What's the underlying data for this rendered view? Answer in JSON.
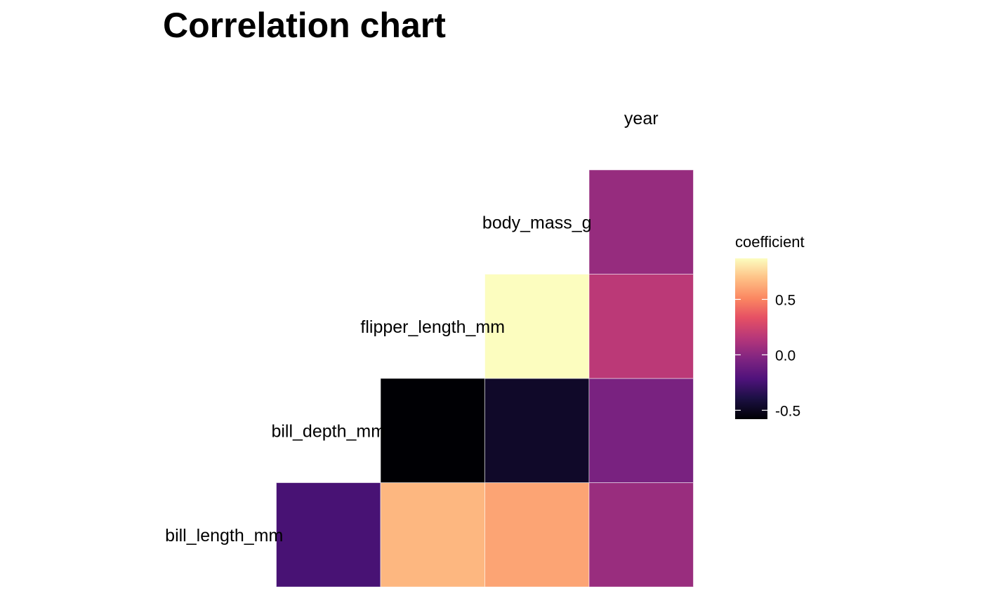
{
  "chart_data": {
    "type": "heatmap",
    "title": "Correlation chart",
    "variables": [
      "bill_length_mm",
      "bill_depth_mm",
      "flipper_length_mm",
      "body_mass_g",
      "year"
    ],
    "cells": [
      {
        "row": "bill_length_mm",
        "col": "bill_depth_mm",
        "value": -0.24
      },
      {
        "row": "bill_length_mm",
        "col": "flipper_length_mm",
        "value": 0.66
      },
      {
        "row": "bill_length_mm",
        "col": "body_mass_g",
        "value": 0.6
      },
      {
        "row": "bill_length_mm",
        "col": "year",
        "value": 0.05
      },
      {
        "row": "bill_depth_mm",
        "col": "flipper_length_mm",
        "value": -0.58
      },
      {
        "row": "bill_depth_mm",
        "col": "body_mass_g",
        "value": -0.47
      },
      {
        "row": "bill_depth_mm",
        "col": "year",
        "value": -0.06
      },
      {
        "row": "flipper_length_mm",
        "col": "body_mass_g",
        "value": 0.87
      },
      {
        "row": "flipper_length_mm",
        "col": "year",
        "value": 0.17
      },
      {
        "row": "body_mass_g",
        "col": "year",
        "value": 0.04
      }
    ],
    "legend": {
      "title": "coefficient",
      "ticks": [
        -0.5,
        0.0,
        0.5
      ],
      "tick_labels": [
        "-0.5",
        "0.0",
        "0.5"
      ],
      "range": [
        -0.58,
        0.87
      ],
      "colorscale": "magma",
      "placement": "right"
    },
    "grid": false
  }
}
